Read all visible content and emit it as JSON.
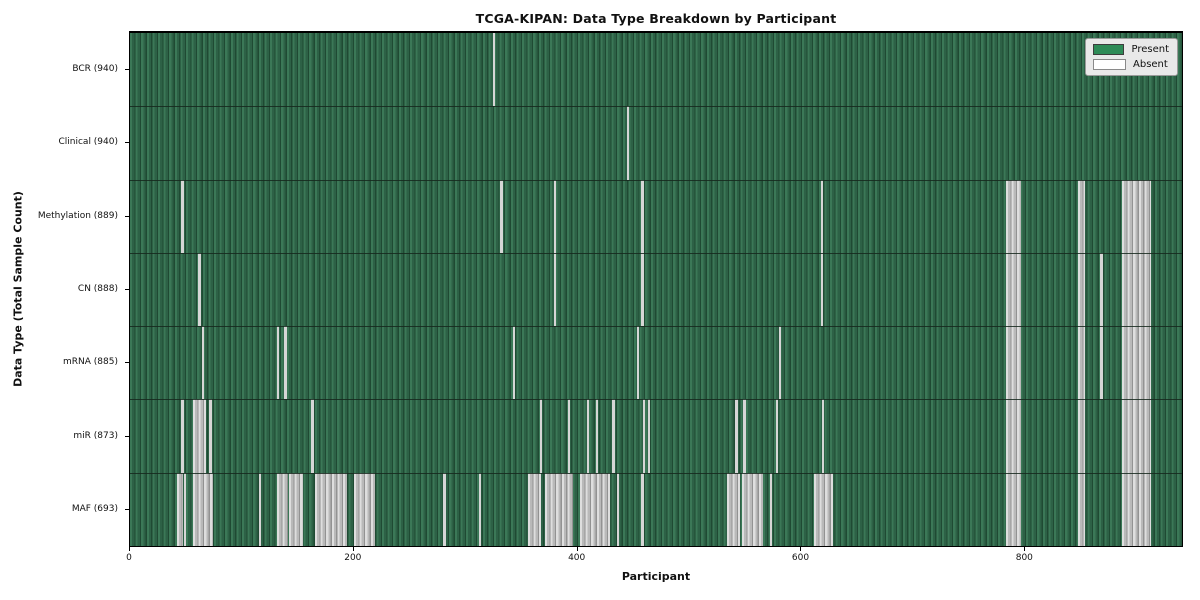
{
  "title": "TCGA-KIPAN: Data Type Breakdown by Participant",
  "xlabel": "Participant",
  "ylabel": "Data Type (Total Sample Count)",
  "legend": {
    "present_label": "Present",
    "absent_label": "Absent"
  },
  "colors": {
    "present": "#2e8b57",
    "absent": "#ffffff",
    "present_texture_dark": "#1f4a33",
    "absent_texture_dark": "#929292",
    "row_separator": "#16281d",
    "axis": "#000000",
    "legend_background": "#e9e9e9"
  },
  "chart_data": {
    "type": "heatmap",
    "title": "TCGA-KIPAN: Data Type Breakdown by Participant",
    "xlabel": "Participant",
    "ylabel": "Data Type (Total Sample Count)",
    "x_range": [
      0,
      940
    ],
    "x_ticks": [
      0,
      200,
      400,
      600,
      800
    ],
    "legend_entries": [
      "Present",
      "Absent"
    ],
    "legend_position": "upper right",
    "grid": false,
    "value_encoding": {
      "present": "green cell",
      "absent": "white cell"
    },
    "rows": [
      {
        "label": "BCR (940)",
        "data_type": "BCR",
        "total_sample_count": 940,
        "absent_ranges": [
          [
            324,
            326
          ]
        ]
      },
      {
        "label": "Clinical (940)",
        "data_type": "Clinical",
        "total_sample_count": 940,
        "absent_ranges": [
          [
            444,
            446
          ]
        ]
      },
      {
        "label": "Methylation (889)",
        "data_type": "Methylation",
        "total_sample_count": 889,
        "absent_ranges": [
          [
            46,
            48
          ],
          [
            331,
            333
          ],
          [
            379,
            381
          ],
          [
            457,
            459
          ],
          [
            617,
            619
          ],
          [
            783,
            796
          ],
          [
            847,
            853
          ],
          [
            886,
            912
          ]
        ]
      },
      {
        "label": "CN (888)",
        "data_type": "CN",
        "total_sample_count": 888,
        "absent_ranges": [
          [
            61,
            63
          ],
          [
            379,
            381
          ],
          [
            457,
            459
          ],
          [
            617,
            619
          ],
          [
            783,
            796
          ],
          [
            847,
            853
          ],
          [
            867,
            869
          ],
          [
            886,
            912
          ]
        ]
      },
      {
        "label": "mRNA (885)",
        "data_type": "mRNA",
        "total_sample_count": 885,
        "absent_ranges": [
          [
            64,
            66
          ],
          [
            131,
            133
          ],
          [
            138,
            140
          ],
          [
            342,
            344
          ],
          [
            453,
            455
          ],
          [
            580,
            582
          ],
          [
            783,
            796
          ],
          [
            847,
            853
          ],
          [
            867,
            869
          ],
          [
            886,
            912
          ]
        ]
      },
      {
        "label": "miR (873)",
        "data_type": "miR",
        "total_sample_count": 873,
        "absent_ranges": [
          [
            46,
            48
          ],
          [
            56,
            68
          ],
          [
            71,
            73
          ],
          [
            162,
            164
          ],
          [
            366,
            368
          ],
          [
            391,
            393
          ],
          [
            408,
            410
          ],
          [
            416,
            418
          ],
          [
            431,
            433
          ],
          [
            458,
            460
          ],
          [
            463,
            465
          ],
          [
            541,
            543
          ],
          [
            548,
            550
          ],
          [
            577,
            579
          ],
          [
            618,
            620
          ],
          [
            783,
            796
          ],
          [
            847,
            853
          ],
          [
            886,
            912
          ]
        ]
      },
      {
        "label": "MAF (693)",
        "data_type": "MAF",
        "total_sample_count": 693,
        "absent_ranges": [
          [
            42,
            47
          ],
          [
            48,
            50
          ],
          [
            56,
            74
          ],
          [
            115,
            117
          ],
          [
            131,
            141
          ],
          [
            142,
            155
          ],
          [
            165,
            194
          ],
          [
            200,
            219
          ],
          [
            280,
            282
          ],
          [
            312,
            314
          ],
          [
            356,
            367
          ],
          [
            371,
            396
          ],
          [
            402,
            429
          ],
          [
            435,
            437
          ],
          [
            457,
            459
          ],
          [
            533,
            545
          ],
          [
            547,
            566
          ],
          [
            572,
            574
          ],
          [
            611,
            628
          ],
          [
            783,
            796
          ],
          [
            847,
            853
          ],
          [
            886,
            912
          ]
        ]
      }
    ]
  }
}
